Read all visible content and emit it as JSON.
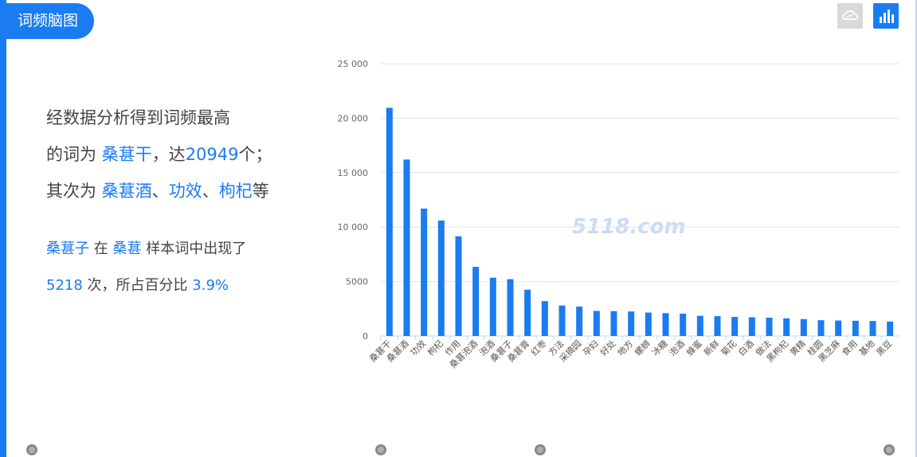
{
  "header": {
    "title": "词频脑图"
  },
  "toolbar": {
    "cloud_icon": "cloud-icon",
    "bar_icon": "bar-chart-icon",
    "active_color": "#1a7cf0",
    "inactive_color": "#d9d9d9"
  },
  "summary": {
    "line1": "经数据分析得到词频最高",
    "line2_prefix": "的词为",
    "top_word": "桑葚干",
    "line2_mid": "，达",
    "top_count": "20949",
    "line2_suffix": "个；",
    "line3_prefix": "其次为",
    "second_words": [
      "桑葚酒",
      "功效",
      "枸杞"
    ],
    "sep1": "、",
    "sep2": "、",
    "line3_suffix": "等"
  },
  "detail": {
    "word": "桑葚子",
    "in_text": "在",
    "sample_word": "桑葚",
    "mid_text": "样本词中出现了",
    "count": "5218",
    "count_suffix": "次，所占百分比",
    "percent": "3.9%"
  },
  "watermark": "5118.com",
  "chart_data": {
    "type": "bar",
    "title": "",
    "xlabel": "",
    "ylabel": "",
    "ylim": [
      0,
      25000
    ],
    "yticks": [
      "0",
      "5000",
      "10 000",
      "15 000",
      "20 000",
      "25 000"
    ],
    "color": "#1a7cf0",
    "grid": true,
    "categories": [
      "桑葚干",
      "桑葚酒",
      "功效",
      "枸杞",
      "作用",
      "桑葚泡酒",
      "泡酒",
      "桑葚子",
      "桑葚膏",
      "红枣",
      "方法",
      "采摘园",
      "孕妇",
      "好处",
      "地方",
      "螺蛳",
      "冰糖",
      "泡酒",
      "蜂蜜",
      "新鲜",
      "菊花",
      "白酒",
      "做法",
      "黑枸杞",
      "黄精",
      "桂圆",
      "黑芝麻",
      "食用",
      "基地",
      "黑豆"
    ],
    "values": [
      20949,
      16200,
      11700,
      10600,
      9150,
      6350,
      5350,
      5218,
      4250,
      3200,
      2800,
      2700,
      2300,
      2280,
      2250,
      2150,
      2100,
      2050,
      1850,
      1820,
      1750,
      1720,
      1680,
      1620,
      1550,
      1450,
      1420,
      1400,
      1380,
      1320
    ]
  }
}
